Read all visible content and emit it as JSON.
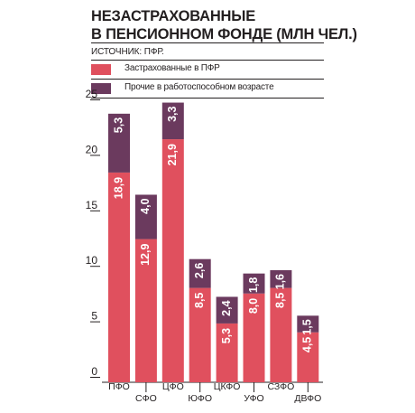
{
  "title_lines": [
    "НЕЗАСТРАХОВАННЫЕ",
    "В ПЕНСИОННОМ ФОНДЕ (МЛН ЧЕЛ.)"
  ],
  "source": "ИСТОЧНИК: ПФР.",
  "colors": {
    "insured": "#e0505e",
    "other": "#6b3a5e",
    "text": "#231f20",
    "label_on_bar": "#ffffff"
  },
  "chart_data": {
    "type": "bar",
    "stacked": true,
    "categories": [
      "ПФО",
      "СФО",
      "ЦФО",
      "ЮФО",
      "ЦКФО",
      "УФО",
      "СЗФО",
      "ДВФО"
    ],
    "series": [
      {
        "name": "Застрахованные в ПФР",
        "values": [
          18.9,
          12.9,
          21.9,
          8.5,
          5.3,
          8.0,
          8.5,
          4.5
        ],
        "labels": [
          "18,9",
          "12,9",
          "21,9",
          "8,5",
          "5,3",
          "8,0",
          "8,5",
          "4,5"
        ]
      },
      {
        "name": "Прочие в работоспособном возрасте",
        "values": [
          5.3,
          4.0,
          3.3,
          2.6,
          2.4,
          1.8,
          1.6,
          1.5
        ],
        "labels": [
          "5,3",
          "4,0",
          "3,3",
          "2,6",
          "2,4",
          "1,8",
          "1,6",
          "1,5"
        ]
      }
    ],
    "yticks": [
      "0",
      "5",
      "10",
      "15",
      "20",
      "25"
    ],
    "ytick_values": [
      0,
      5,
      10,
      15,
      20,
      25
    ],
    "ylim": [
      0,
      25
    ],
    "legend_position": "top"
  }
}
